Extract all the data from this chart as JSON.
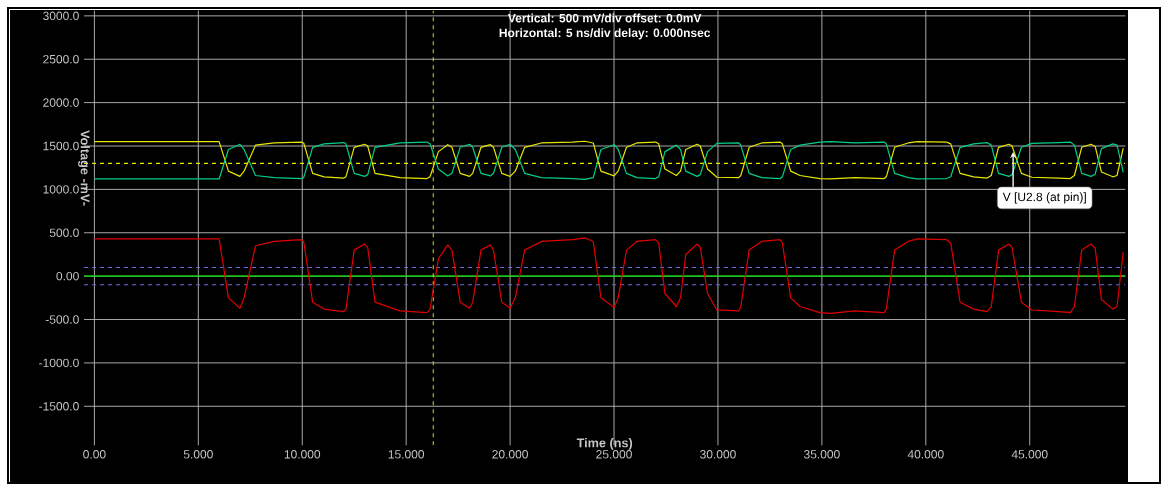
{
  "chart_data": {
    "type": "line",
    "xlabel": "Time  (ns)",
    "ylabel": "Voltage -mV-",
    "annotations": [
      "Vertical: 500 mV/div  offset: 0.0mV",
      "Horizontal: 5 ns/div  delay: 0.000nsec",
      {
        "text": "V [U2.8 (at pin)]",
        "x": 44.2,
        "y": 1430
      }
    ],
    "x": [
      0,
      6.0,
      6.45,
      7.0,
      7.2,
      7.75,
      8.65,
      9.95,
      10.07,
      10.5,
      11.05,
      12.0,
      12.1,
      12.5,
      13.0,
      13.15,
      13.5,
      14.7,
      16.0,
      16.15,
      16.55,
      17.0,
      17.2,
      17.6,
      18.05,
      18.2,
      18.6,
      19.05,
      19.2,
      19.6,
      20.0,
      20.25,
      20.7,
      21.5,
      23.0,
      23.6,
      24.0,
      24.37,
      25.0,
      25.2,
      25.6,
      26.1,
      27.0,
      27.15,
      27.45,
      28.0,
      28.2,
      28.45,
      29.0,
      29.15,
      29.5,
      29.95,
      31.0,
      31.1,
      31.5,
      32.1,
      33.0,
      33.1,
      33.5,
      33.95,
      34.9,
      35.4,
      36.6,
      38.0,
      38.1,
      38.5,
      39.15,
      39.6,
      41.0,
      41.2,
      41.65,
      42.3,
      42.95,
      43.15,
      43.5,
      44.0,
      44.15,
      44.6,
      45.1,
      46.4,
      46.95,
      47.15,
      47.5,
      47.95,
      48.15,
      48.45,
      49.0,
      49.2,
      49.5
    ],
    "series": [
      {
        "color": "#e6e600",
        "values": [
          1550,
          1550,
          1210,
          1150,
          1210,
          1510,
          1535,
          1545,
          1535,
          1185,
          1145,
          1130,
          1145,
          1485,
          1520,
          1500,
          1185,
          1135,
          1125,
          1145,
          1435,
          1515,
          1485,
          1185,
          1150,
          1185,
          1485,
          1515,
          1485,
          1185,
          1150,
          1210,
          1485,
          1535,
          1545,
          1555,
          1535,
          1210,
          1155,
          1210,
          1485,
          1535,
          1545,
          1525,
          1235,
          1160,
          1210,
          1460,
          1520,
          1500,
          1235,
          1140,
          1135,
          1160,
          1485,
          1535,
          1545,
          1525,
          1210,
          1160,
          1125,
          1120,
          1135,
          1125,
          1145,
          1485,
          1535,
          1550,
          1545,
          1525,
          1185,
          1145,
          1130,
          1160,
          1485,
          1520,
          1500,
          1185,
          1140,
          1130,
          1125,
          1160,
          1485,
          1520,
          1495,
          1200,
          1145,
          1160,
          1475
        ]
      },
      {
        "color": "#00d084",
        "values": [
          1120,
          1120,
          1460,
          1520,
          1460,
          1160,
          1135,
          1125,
          1135,
          1485,
          1525,
          1540,
          1525,
          1185,
          1150,
          1170,
          1485,
          1535,
          1545,
          1525,
          1235,
          1155,
          1185,
          1485,
          1520,
          1485,
          1185,
          1155,
          1185,
          1485,
          1520,
          1460,
          1185,
          1135,
          1125,
          1115,
          1135,
          1460,
          1515,
          1460,
          1185,
          1135,
          1125,
          1145,
          1435,
          1510,
          1460,
          1210,
          1150,
          1170,
          1435,
          1530,
          1535,
          1510,
          1185,
          1135,
          1125,
          1145,
          1460,
          1510,
          1545,
          1550,
          1535,
          1545,
          1525,
          1185,
          1135,
          1120,
          1125,
          1145,
          1485,
          1525,
          1540,
          1510,
          1185,
          1150,
          1170,
          1485,
          1530,
          1540,
          1545,
          1510,
          1185,
          1150,
          1175,
          1470,
          1525,
          1510,
          1195
        ]
      },
      {
        "color": "#e00000",
        "values": [
          430,
          430,
          -250,
          -370,
          -250,
          350,
          400,
          420,
          400,
          -300,
          -380,
          -410,
          -380,
          300,
          370,
          330,
          -300,
          -400,
          -420,
          -380,
          200,
          360,
          300,
          -300,
          -370,
          -300,
          300,
          360,
          300,
          -300,
          -370,
          -250,
          300,
          400,
          420,
          440,
          400,
          -250,
          -360,
          -250,
          300,
          400,
          420,
          380,
          -200,
          -350,
          -250,
          250,
          370,
          330,
          -200,
          -390,
          -400,
          -350,
          300,
          400,
          420,
          380,
          -250,
          -350,
          -420,
          -430,
          -400,
          -420,
          -380,
          300,
          400,
          430,
          420,
          380,
          -300,
          -380,
          -410,
          -350,
          300,
          370,
          330,
          -300,
          -390,
          -410,
          -420,
          -350,
          300,
          370,
          320,
          -270,
          -380,
          -350,
          280
        ]
      }
    ],
    "xlim": [
      -0.5,
      49.6
    ],
    "ylim": [
      -1950,
      3060
    ],
    "xticks": [
      {
        "value": 0,
        "label": "0.00"
      },
      {
        "value": 5,
        "label": "5.000"
      },
      {
        "value": 10,
        "label": "10.000"
      },
      {
        "value": 15,
        "label": "15.000"
      },
      {
        "value": 20,
        "label": "20.000"
      },
      {
        "value": 25,
        "label": "25.000"
      },
      {
        "value": 30,
        "label": "30.000"
      },
      {
        "value": 35,
        "label": "35.000"
      },
      {
        "value": 40,
        "label": "40.000"
      },
      {
        "value": 45,
        "label": "45.000"
      }
    ],
    "yticks": [
      {
        "value": 3000,
        "label": "3000.0"
      },
      {
        "value": 2500,
        "label": "2500.0"
      },
      {
        "value": 2000,
        "label": "2000.0"
      },
      {
        "value": 1500,
        "label": "1500.0"
      },
      {
        "value": 1000,
        "label": "1000.0"
      },
      {
        "value": 500,
        "label": "500.0"
      },
      {
        "value": 0,
        "label": "0.00"
      },
      {
        "value": -500,
        "label": "-500.0"
      },
      {
        "value": -1000,
        "label": "-1000.0"
      },
      {
        "value": -1500,
        "label": "-1500.0"
      }
    ],
    "ref_lines": [
      {
        "axis": "y",
        "value": 1300,
        "color": "#e6e600",
        "line_style": "dashed"
      },
      {
        "axis": "y",
        "value": 100,
        "color": "#6b6bd6",
        "line_style": "dashed"
      },
      {
        "axis": "y",
        "value": -100,
        "color": "#6b6bd6",
        "line_style": "dashed"
      },
      {
        "axis": "y",
        "value": 0,
        "color": "#00e000",
        "line_style": "solid"
      },
      {
        "axis": "x",
        "value": 16.3,
        "color": "#e6e600",
        "line_style": "dashed"
      }
    ],
    "grid": true,
    "marker": "none",
    "line_style": "solid"
  }
}
